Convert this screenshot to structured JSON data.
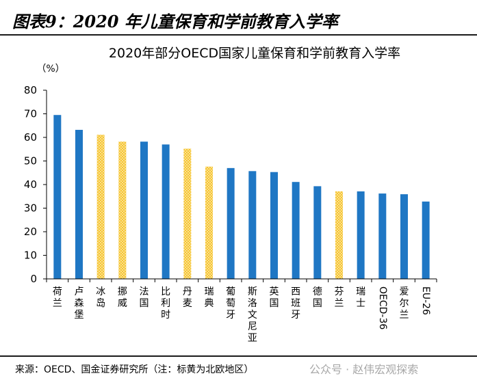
{
  "figure_title": "图表9：2020 年儿童保育和学前教育入学率",
  "source": "来源：OECD、国金证券研究所（注：标黄为北欧地区）",
  "watermark": "公众号 · 赵伟宏观探索",
  "colors": {
    "blue": "#1f77c4",
    "yellow": "#f6c531",
    "axis": "#000000"
  },
  "chart_data": {
    "type": "bar",
    "title": "2020年部分OECD国家儿童保育和学前教育入学率",
    "ylabel": "（%）",
    "xlabel": "",
    "ylim": [
      0,
      80
    ],
    "yticks": [
      0,
      10,
      20,
      30,
      40,
      50,
      60,
      70,
      80
    ],
    "grid": false,
    "categories": [
      "荷兰",
      "卢森堡",
      "冰岛",
      "挪威",
      "法国",
      "比利时",
      "丹麦",
      "瑞典",
      "葡萄牙",
      "斯洛文尼亚",
      "英国",
      "西班牙",
      "德国",
      "芬兰",
      "瑞士",
      "OECD-36",
      "爱尔兰",
      "EU-26"
    ],
    "values": [
      69.5,
      63.2,
      61.1,
      58.2,
      58.2,
      57.0,
      55.2,
      47.6,
      47.0,
      45.7,
      45.3,
      41.1,
      39.3,
      37.1,
      37.1,
      36.2,
      35.9,
      32.8
    ],
    "highlight_nordic": [
      false,
      false,
      true,
      true,
      false,
      false,
      true,
      true,
      false,
      false,
      false,
      false,
      false,
      true,
      false,
      false,
      false,
      false
    ],
    "highlight_note": "标黄为北欧地区"
  }
}
